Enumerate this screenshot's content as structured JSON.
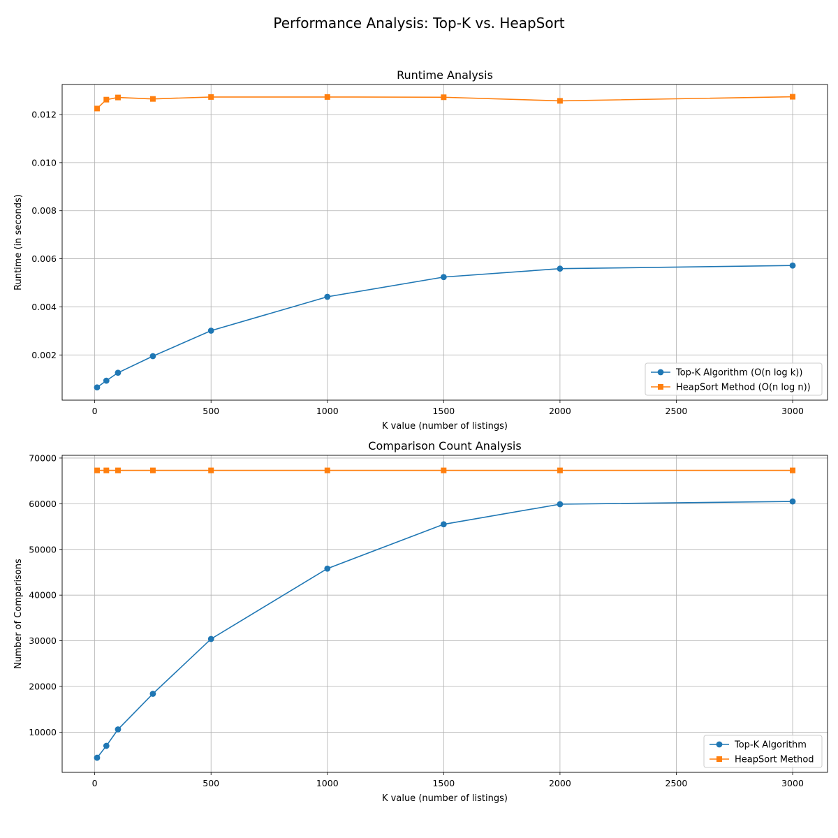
{
  "figure": {
    "suptitle": "Performance Analysis: Top-K vs. HeapSort"
  },
  "colors": {
    "topk": "#1f77b4",
    "heapsort": "#ff7f0e",
    "grid": "#b0b0b0",
    "axes": "#000000"
  },
  "chart_data": [
    {
      "type": "line",
      "title": "Runtime Analysis",
      "xlabel": "K value (number of listings)",
      "ylabel": "Runtime (in seconds)",
      "xlim": [
        -140,
        3150
      ],
      "ylim": [
        0.00012,
        0.01325
      ],
      "xticks": [
        0,
        500,
        1000,
        1500,
        2000,
        2500,
        3000
      ],
      "xticklabels": [
        "0",
        "500",
        "1000",
        "1500",
        "2000",
        "2500",
        "3000"
      ],
      "yticks": [
        0.002,
        0.004,
        0.006,
        0.008,
        0.01,
        0.012
      ],
      "yticklabels": [
        "0.002",
        "0.004",
        "0.006",
        "0.008",
        "0.010",
        "0.012"
      ],
      "grid": true,
      "legend_position": "lower right",
      "series": [
        {
          "name": "Top-K Algorithm (O(n log k))",
          "marker": "circle",
          "color_key": "topk",
          "x": [
            10,
            50,
            100,
            250,
            500,
            1000,
            1500,
            2000,
            3000
          ],
          "y": [
            0.00065,
            0.00093,
            0.00126,
            0.00195,
            0.00301,
            0.00442,
            0.00524,
            0.00559,
            0.00572
          ]
        },
        {
          "name": "HeapSort Method (O(n log n))",
          "marker": "square",
          "color_key": "heapsort",
          "x": [
            10,
            50,
            100,
            250,
            500,
            1000,
            1500,
            2000,
            3000
          ],
          "y": [
            0.01225,
            0.01262,
            0.01271,
            0.01265,
            0.01273,
            0.01273,
            0.01272,
            0.01257,
            0.01274
          ]
        }
      ]
    },
    {
      "type": "line",
      "title": "Comparison Count Analysis",
      "xlabel": "K value (number of listings)",
      "ylabel": "Number of Comparisons",
      "xlim": [
        -140,
        3150
      ],
      "ylim": [
        1200,
        70600
      ],
      "xticks": [
        0,
        500,
        1000,
        1500,
        2000,
        2500,
        3000
      ],
      "xticklabels": [
        "0",
        "500",
        "1000",
        "1500",
        "2000",
        "2500",
        "3000"
      ],
      "yticks": [
        10000,
        20000,
        30000,
        40000,
        50000,
        60000,
        70000
      ],
      "yticklabels": [
        "10000",
        "20000",
        "30000",
        "40000",
        "50000",
        "60000",
        "70000"
      ],
      "grid": true,
      "legend_position": "lower right",
      "series": [
        {
          "name": "Top-K Algorithm",
          "marker": "circle",
          "color_key": "topk",
          "x": [
            10,
            50,
            100,
            250,
            500,
            1000,
            1500,
            2000,
            3000
          ],
          "y": [
            4400,
            7000,
            10600,
            18400,
            30400,
            45800,
            55500,
            59900,
            60500
          ]
        },
        {
          "name": "HeapSort Method",
          "marker": "square",
          "color_key": "heapsort",
          "x": [
            10,
            50,
            100,
            250,
            500,
            1000,
            1500,
            2000,
            3000
          ],
          "y": [
            67300,
            67300,
            67300,
            67300,
            67300,
            67300,
            67300,
            67300,
            67300
          ]
        }
      ]
    }
  ]
}
